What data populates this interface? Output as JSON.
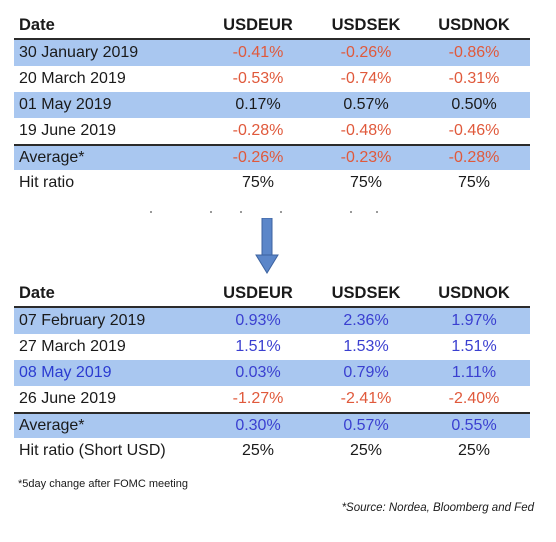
{
  "table1": {
    "headers": [
      "Date",
      "USDEUR",
      "USDSEK",
      "USDNOK"
    ],
    "rows": [
      {
        "date": "30 January 2019",
        "v": [
          "-0.41%",
          "-0.26%",
          "-0.86%"
        ]
      },
      {
        "date": "20 March 2019",
        "v": [
          "-0.53%",
          "-0.74%",
          "-0.31%"
        ]
      },
      {
        "date": "01 May 2019",
        "v": [
          "0.17%",
          "0.57%",
          "0.50%"
        ]
      },
      {
        "date": "19 June 2019",
        "v": [
          "-0.28%",
          "-0.48%",
          "-0.46%"
        ]
      }
    ],
    "average": {
      "label": "Average*",
      "v": [
        "-0.26%",
        "-0.23%",
        "-0.28%"
      ]
    },
    "hit": {
      "label": "Hit ratio",
      "v": [
        "75%",
        "75%",
        "75%"
      ]
    }
  },
  "table2": {
    "headers": [
      "Date",
      "USDEUR",
      "USDSEK",
      "USDNOK"
    ],
    "rows": [
      {
        "date": "07 February 2019",
        "v": [
          "0.93%",
          "2.36%",
          "1.97%"
        ]
      },
      {
        "date": "27 March 2019",
        "v": [
          "1.51%",
          "1.53%",
          "1.51%"
        ]
      },
      {
        "date": "08 May 2019",
        "v": [
          "0.03%",
          "0.79%",
          "1.11%"
        ]
      },
      {
        "date": "26 June 2019",
        "v": [
          "-1.27%",
          "-2.41%",
          "-2.40%"
        ]
      }
    ],
    "average": {
      "label": "Average*",
      "v": [
        "0.30%",
        "0.57%",
        "0.55%"
      ]
    },
    "hit": {
      "label": "Hit ratio (Short USD)",
      "v": [
        "25%",
        "25%",
        "25%"
      ]
    }
  },
  "footnote": "*5day change after FOMC meeting",
  "source": "*Source: Nordea, Bloomberg and Fed",
  "colors": {
    "shade": "#a9c7f0",
    "negative": "#e0593b",
    "positive_blue": "#3a3fd0",
    "arrow": "#5b86c9"
  }
}
